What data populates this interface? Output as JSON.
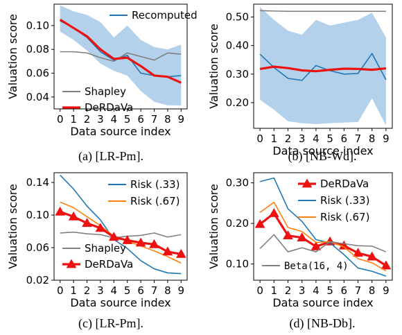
{
  "chart_data": [
    {
      "type": "line",
      "caption": "(a) [LR-Pm].",
      "xlabel": "Data source index",
      "ylabel": "Valuation score",
      "x": [
        0,
        1,
        2,
        3,
        4,
        5,
        6,
        7,
        8,
        9
      ],
      "xticks": [
        "0",
        "1",
        "2",
        "3",
        "4",
        "5",
        "6",
        "7",
        "8",
        "9"
      ],
      "ylim": [
        0.03,
        0.118
      ],
      "yticks": [
        0.04,
        0.06,
        0.08,
        0.1
      ],
      "ytick_labels": [
        "0.04",
        "0.06",
        "0.08",
        "0.10"
      ],
      "grid": false,
      "band": {
        "lower": [
          0.095,
          0.088,
          0.079,
          0.068,
          0.062,
          0.058,
          0.045,
          0.036,
          0.033,
          0.033
        ],
        "upper": [
          0.117,
          0.112,
          0.109,
          0.103,
          0.09,
          0.1,
          0.088,
          0.082,
          0.08,
          0.084
        ],
        "color": "#b3d1ea"
      },
      "series": [
        {
          "name": "Recomputed",
          "values": [
            0.104,
            0.098,
            0.09,
            0.078,
            0.071,
            0.075,
            0.06,
            0.058,
            0.057,
            0.058
          ],
          "color": "#1f77b4",
          "width": 1.6
        },
        {
          "name": "Shapley",
          "values": [
            0.078,
            0.078,
            0.077,
            0.073,
            0.07,
            0.077,
            0.074,
            0.071,
            0.077,
            0.076
          ],
          "color": "#808080",
          "width": 1.6
        },
        {
          "name": "DeRDaVa",
          "values": [
            0.105,
            0.098,
            0.091,
            0.08,
            0.072,
            0.073,
            0.066,
            0.058,
            0.057,
            0.052
          ],
          "color": "#ee1111",
          "width": 3.2
        }
      ],
      "legend": [
        {
          "label": "Recomputed",
          "color": "#1f77b4",
          "width": 2,
          "position": "top-right"
        },
        {
          "label": "Shapley",
          "color": "#808080",
          "width": 2,
          "position": "bottom-left"
        },
        {
          "label": "DeRDaVa",
          "color": "#ee1111",
          "width": 3.2,
          "position": "bottom-left"
        }
      ]
    },
    {
      "type": "line",
      "caption": "(b) [NB-Wd].",
      "xlabel": "Data source index",
      "ylabel": "Valuation score",
      "x": [
        0,
        1,
        2,
        3,
        4,
        5,
        6,
        7,
        8,
        9
      ],
      "xticks": [
        "0",
        "1",
        "2",
        "3",
        "4",
        "5",
        "6",
        "7",
        "8",
        "9"
      ],
      "ylim": [
        0.11,
        0.545
      ],
      "yticks": [
        0.2,
        0.3,
        0.4,
        0.5
      ],
      "ytick_labels": [
        "0.20",
        "0.30",
        "0.40",
        "0.50"
      ],
      "grid": false,
      "band": {
        "lower": [
          0.21,
          0.175,
          0.135,
          0.128,
          0.125,
          0.128,
          0.13,
          0.132,
          0.215,
          0.12
        ],
        "upper": [
          0.535,
          0.49,
          0.452,
          0.438,
          0.49,
          0.47,
          0.48,
          0.49,
          0.515,
          0.428
        ],
        "color": "#b3d1ea"
      },
      "series": [
        {
          "name": "",
          "values": [
            0.522,
            0.521,
            0.52,
            0.52,
            0.52,
            0.52,
            0.52,
            0.52,
            0.52,
            0.52
          ],
          "color": "#808080",
          "width": 1.6
        },
        {
          "name": "",
          "values": [
            0.37,
            0.323,
            0.285,
            0.278,
            0.33,
            0.312,
            0.3,
            0.302,
            0.372,
            0.28
          ],
          "color": "#1f77b4",
          "width": 1.6
        },
        {
          "name": "",
          "values": [
            0.318,
            0.326,
            0.321,
            0.313,
            0.31,
            0.315,
            0.319,
            0.318,
            0.315,
            0.32
          ],
          "color": "#ee1111",
          "width": 3.2
        }
      ],
      "legend": []
    },
    {
      "type": "line",
      "caption": "(c) [LR-Pm].",
      "xlabel": "Data source index",
      "ylabel": "Valuation score",
      "x": [
        0,
        1,
        2,
        3,
        4,
        5,
        6,
        7,
        8,
        9
      ],
      "xticks": [
        "0",
        "1",
        "2",
        "3",
        "4",
        "5",
        "6",
        "7",
        "8",
        "9"
      ],
      "ylim": [
        0.02,
        0.152
      ],
      "yticks": [
        0.02,
        0.06,
        0.1,
        0.14
      ],
      "ytick_labels": [
        "0.02",
        "0.06",
        "0.10",
        "0.14"
      ],
      "grid": false,
      "series": [
        {
          "name": "Risk (.33)",
          "values": [
            0.149,
            0.132,
            0.111,
            0.094,
            0.07,
            0.059,
            0.044,
            0.034,
            0.029,
            0.028
          ],
          "color": "#1f77b4",
          "width": 1.6
        },
        {
          "name": "Risk (.67)",
          "values": [
            0.116,
            0.109,
            0.098,
            0.087,
            0.074,
            0.068,
            0.062,
            0.056,
            0.049,
            0.041
          ],
          "color": "#ff7f0e",
          "width": 1.6
        },
        {
          "name": "Shapley",
          "values": [
            0.078,
            0.079,
            0.077,
            0.076,
            0.072,
            0.074,
            0.075,
            0.078,
            0.073,
            0.076
          ],
          "color": "#808080",
          "width": 1.6
        },
        {
          "name": "DeRDaVa",
          "values": [
            0.104,
            0.098,
            0.09,
            0.084,
            0.073,
            0.069,
            0.066,
            0.064,
            0.055,
            0.052
          ],
          "color": "#ee1111",
          "width": 3.2,
          "marker": "triangle"
        }
      ],
      "legend": [
        {
          "label": "Risk (.33)",
          "color": "#1f77b4",
          "width": 2,
          "position": "top-right"
        },
        {
          "label": "Risk (.67)",
          "color": "#ff7f0e",
          "width": 2,
          "position": "top-right"
        },
        {
          "label": "Shapley",
          "color": "#808080",
          "width": 2,
          "position": "bottom-left"
        },
        {
          "label": "DeRDaVa",
          "color": "#ee1111",
          "width": 3.2,
          "marker": "triangle",
          "position": "bottom-left"
        }
      ]
    },
    {
      "type": "line",
      "caption": "(d) [NB-Db].",
      "xlabel": "Data source index",
      "ylabel": "Valuation score",
      "x": [
        0,
        1,
        2,
        3,
        4,
        5,
        6,
        7,
        8,
        9
      ],
      "xticks": [
        "0",
        "1",
        "2",
        "3",
        "4",
        "5",
        "6",
        "7",
        "8",
        "9"
      ],
      "ylim": [
        0.06,
        0.325
      ],
      "yticks": [
        0.1,
        0.2,
        0.3
      ],
      "ytick_labels": [
        "0.10",
        "0.20",
        "0.30"
      ],
      "grid": false,
      "series": [
        {
          "name": "DeRDaVa",
          "values": [
            0.198,
            0.225,
            0.17,
            0.165,
            0.143,
            0.155,
            0.145,
            0.127,
            0.118,
            0.096
          ],
          "color": "#ee1111",
          "width": 3.2,
          "marker": "triangle"
        },
        {
          "name": "Risk (.33)",
          "values": [
            0.303,
            0.312,
            0.236,
            0.205,
            0.16,
            0.152,
            0.123,
            0.09,
            0.082,
            0.07
          ],
          "color": "#1f77b4",
          "width": 1.6
        },
        {
          "name": "Risk (.67)",
          "values": [
            0.227,
            0.252,
            0.19,
            0.18,
            0.153,
            0.155,
            0.142,
            0.113,
            0.103,
            0.083
          ],
          "color": "#ff7f0e",
          "width": 1.6
        },
        {
          "name": "Beta(16, 4)",
          "values": [
            0.138,
            0.172,
            0.13,
            0.14,
            0.13,
            0.155,
            0.15,
            0.145,
            0.144,
            0.13
          ],
          "color": "#808080",
          "width": 1.6
        }
      ],
      "legend": [
        {
          "label": "DeRDaVa",
          "color": "#ee1111",
          "width": 3.2,
          "marker": "triangle",
          "position": "top-right"
        },
        {
          "label": "Risk (.33)",
          "color": "#1f77b4",
          "width": 2,
          "position": "top-right"
        },
        {
          "label": "Risk (.67)",
          "color": "#ff7f0e",
          "width": 2,
          "position": "top-right"
        },
        {
          "label": "Beta(16, 4)",
          "color": "#808080",
          "width": 2,
          "position": "bottom-left",
          "mono": true
        }
      ]
    }
  ]
}
